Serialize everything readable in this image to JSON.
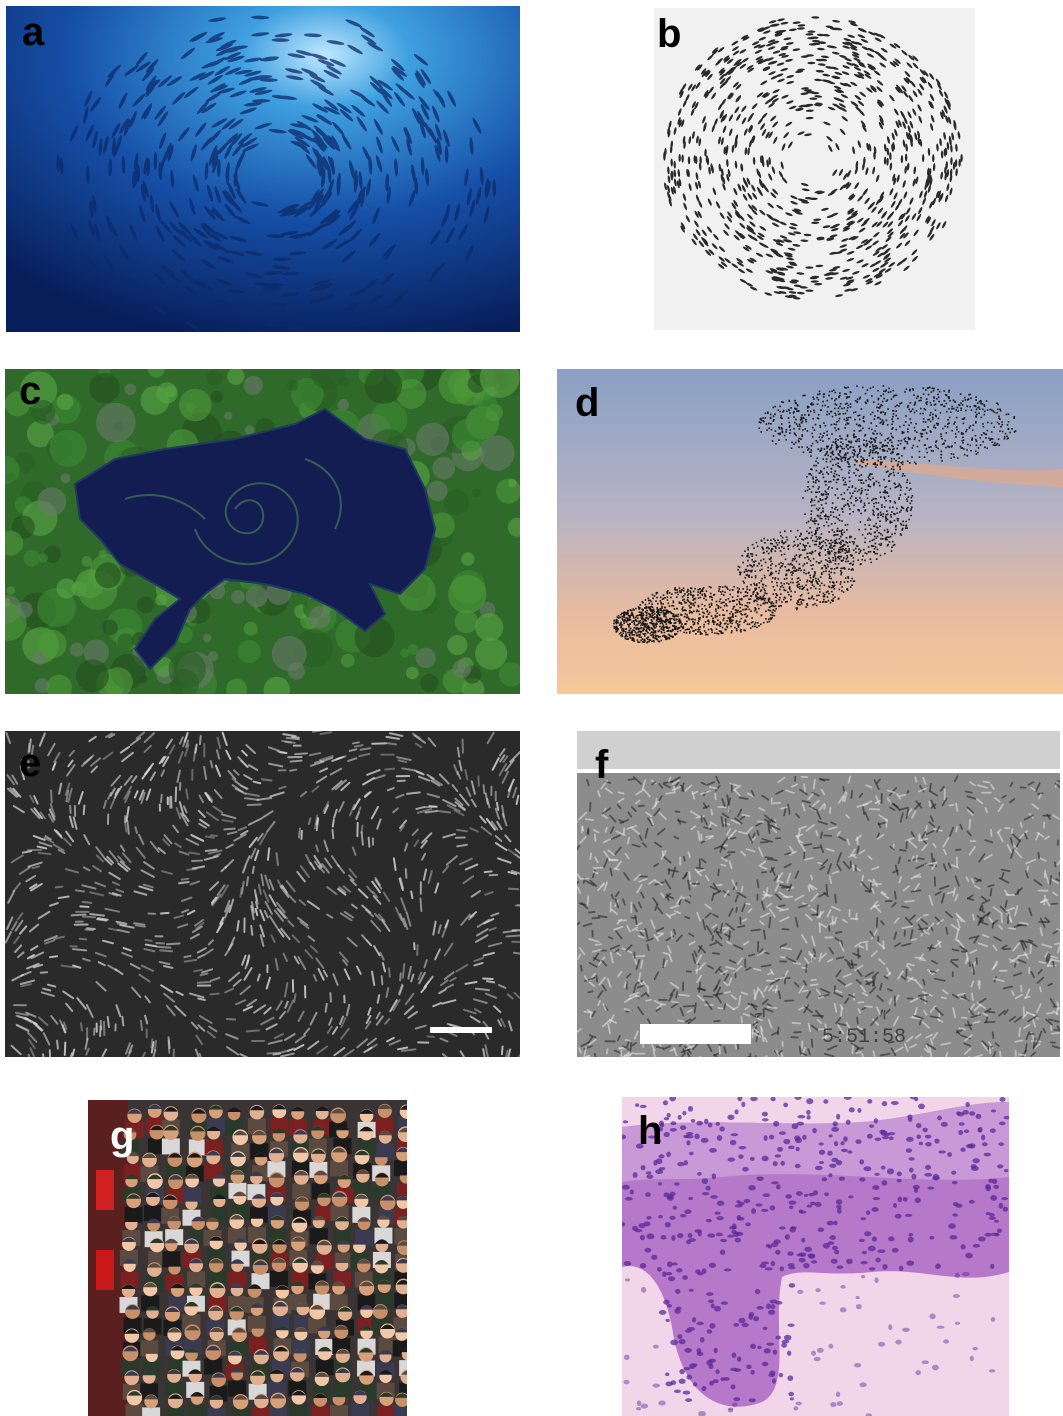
{
  "panels": [
    {
      "id": "a",
      "label": "a",
      "label_color": "#000000"
    },
    {
      "id": "b",
      "label": "b",
      "label_color": "#000000"
    },
    {
      "id": "c",
      "label": "c",
      "label_color": "#000000"
    },
    {
      "id": "d",
      "label": "d",
      "label_color": "#000000"
    },
    {
      "id": "e",
      "label": "e",
      "label_color": "#000000"
    },
    {
      "id": "f",
      "label": "f",
      "label_color": "#000000"
    },
    {
      "id": "g",
      "label": "g",
      "label_color": "#ffffff"
    },
    {
      "id": "h",
      "label": "h",
      "label_color": "#000000"
    }
  ],
  "panel_f": {
    "timestamp": "5:51:58"
  }
}
